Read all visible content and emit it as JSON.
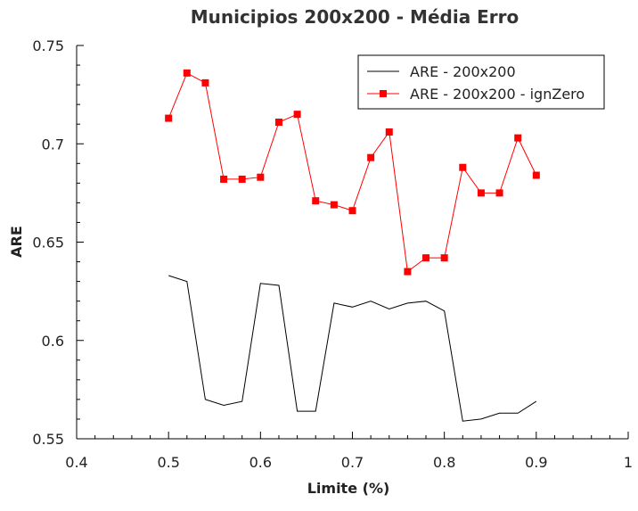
{
  "chart_data": {
    "type": "line",
    "title": "Municipios 200x200 - Média Erro",
    "xlabel": "Limite (%)",
    "ylabel": "ARE",
    "xlim": [
      0.4,
      1.0
    ],
    "ylim": [
      0.55,
      0.75
    ],
    "x_ticks": [
      "0.4",
      "0.5",
      "0.6",
      "0.7",
      "0.8",
      "0.9",
      "1"
    ],
    "y_ticks": [
      "0.55",
      "0.6",
      "0.65",
      "0.7",
      "0.75"
    ],
    "x_tick_values": [
      0.4,
      0.5,
      0.6,
      0.7,
      0.8,
      0.9,
      1.0
    ],
    "y_tick_values": [
      0.55,
      0.6,
      0.65,
      0.7,
      0.75
    ],
    "grid": false,
    "legend_position": "top-right",
    "x": [
      0.5,
      0.52,
      0.54,
      0.56,
      0.58,
      0.6,
      0.62,
      0.64,
      0.66,
      0.68,
      0.7,
      0.72,
      0.74,
      0.76,
      0.78,
      0.8,
      0.82,
      0.84,
      0.86,
      0.88,
      0.9
    ],
    "series": [
      {
        "name": "ARE - 200x200",
        "color": "#000000",
        "marker": "none",
        "values": [
          0.633,
          0.63,
          0.57,
          0.567,
          0.569,
          0.629,
          0.628,
          0.564,
          0.564,
          0.619,
          0.617,
          0.62,
          0.616,
          0.619,
          0.62,
          0.615,
          0.559,
          0.56,
          0.563,
          0.563,
          0.569
        ]
      },
      {
        "name": "ARE - 200x200 - ignZero",
        "color": "#ff0000",
        "marker": "square",
        "values": [
          0.713,
          0.736,
          0.731,
          0.682,
          0.682,
          0.683,
          0.711,
          0.715,
          0.671,
          0.669,
          0.666,
          0.693,
          0.706,
          0.635,
          0.642,
          0.642,
          0.688,
          0.675,
          0.675,
          0.703,
          0.684
        ]
      }
    ]
  }
}
